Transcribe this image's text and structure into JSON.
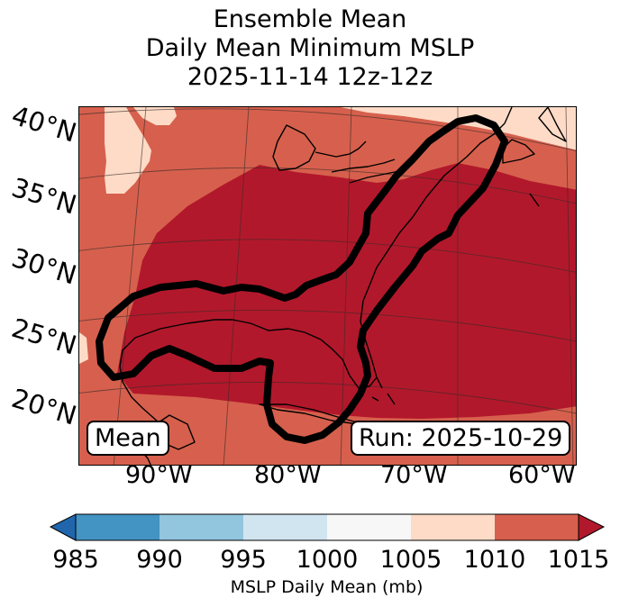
{
  "title": {
    "line1": "Ensemble Mean",
    "line2": "Daily Mean Minimum MSLP",
    "line3": "2025-11-14 12z-12z"
  },
  "map": {
    "lat_labels": [
      "40°N",
      "35°N",
      "30°N",
      "25°N",
      "20°N"
    ],
    "lon_labels": [
      "90°W",
      "80°W",
      "70°W",
      "60°W"
    ],
    "mean_box": "Mean",
    "run_box": "Run: 2025-10-29",
    "colors": {
      "bin_1005_1010": "#fddbc7",
      "bin_1010_1015": "#d6604d",
      "bin_above_1015": "#b2182b",
      "contour": "#000000",
      "coastline": "#000000",
      "gridline": "#000000"
    }
  },
  "colorbar": {
    "label": "MSLP Daily Mean (mb)",
    "ticks": [
      "985",
      "990",
      "995",
      "1000",
      "1005",
      "1010",
      "1015"
    ],
    "bins": [
      {
        "from": 985,
        "to": 990,
        "color": "#4393c3"
      },
      {
        "from": 990,
        "to": 995,
        "color": "#92c5de"
      },
      {
        "from": 995,
        "to": 1000,
        "color": "#d1e5f0"
      },
      {
        "from": 1000,
        "to": 1005,
        "color": "#f7f7f7"
      },
      {
        "from": 1005,
        "to": 1010,
        "color": "#fddbc7"
      },
      {
        "from": 1010,
        "to": 1015,
        "color": "#d6604d"
      }
    ],
    "under_color": "#2166ac",
    "over_color": "#b2182b"
  }
}
